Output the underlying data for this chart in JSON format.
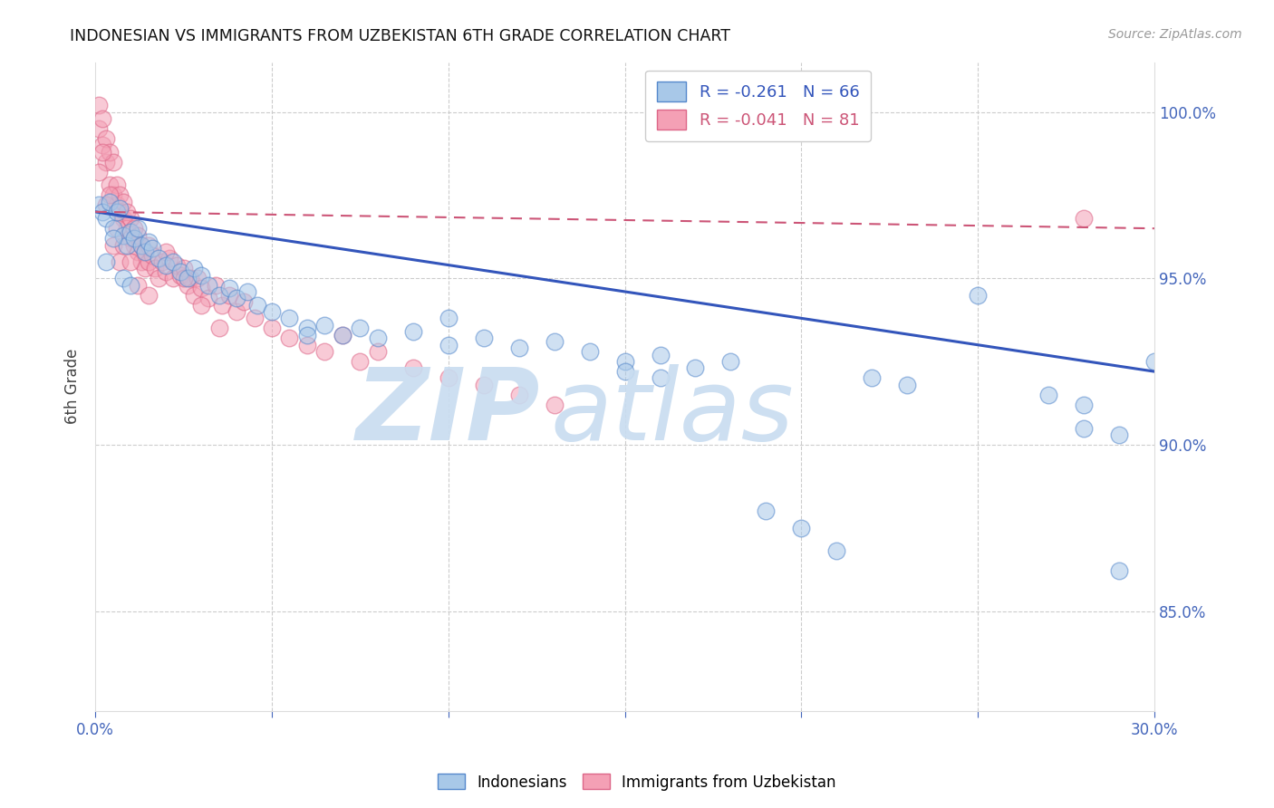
{
  "title": "INDONESIAN VS IMMIGRANTS FROM UZBEKISTAN 6TH GRADE CORRELATION CHART",
  "source": "Source: ZipAtlas.com",
  "ylabel": "6th Grade",
  "xmin": 0.0,
  "xmax": 0.3,
  "ymin": 82.0,
  "ymax": 101.5,
  "legend_blue_r": -0.261,
  "legend_blue_n": 66,
  "legend_pink_r": -0.041,
  "legend_pink_n": 81,
  "blue_color": "#A8C8E8",
  "pink_color": "#F4A0B5",
  "blue_edge_color": "#5588CC",
  "pink_edge_color": "#DD6688",
  "blue_line_color": "#3355BB",
  "pink_line_color": "#CC5577",
  "watermark_zip_color": "#C8DCF0",
  "watermark_atlas_color": "#C8DCF0",
  "tick_color": "#4466BB",
  "grid_color": "#CCCCCC",
  "blue_scatter_x": [
    0.001,
    0.002,
    0.003,
    0.004,
    0.005,
    0.006,
    0.007,
    0.008,
    0.009,
    0.01,
    0.011,
    0.012,
    0.013,
    0.014,
    0.015,
    0.016,
    0.018,
    0.02,
    0.022,
    0.024,
    0.026,
    0.028,
    0.03,
    0.032,
    0.035,
    0.038,
    0.04,
    0.043,
    0.046,
    0.05,
    0.055,
    0.06,
    0.065,
    0.07,
    0.075,
    0.08,
    0.09,
    0.1,
    0.11,
    0.12,
    0.13,
    0.14,
    0.15,
    0.16,
    0.17,
    0.18,
    0.19,
    0.2,
    0.21,
    0.22,
    0.23,
    0.25,
    0.27,
    0.28,
    0.29,
    0.3,
    0.003,
    0.005,
    0.008,
    0.01,
    0.15,
    0.16,
    0.28,
    0.29,
    0.06,
    0.1
  ],
  "blue_scatter_y": [
    97.2,
    97.0,
    96.8,
    97.3,
    96.5,
    97.0,
    97.1,
    96.3,
    96.0,
    96.4,
    96.2,
    96.5,
    96.0,
    95.8,
    96.1,
    95.9,
    95.6,
    95.4,
    95.5,
    95.2,
    95.0,
    95.3,
    95.1,
    94.8,
    94.5,
    94.7,
    94.4,
    94.6,
    94.2,
    94.0,
    93.8,
    93.5,
    93.6,
    93.3,
    93.5,
    93.2,
    93.4,
    93.0,
    93.2,
    92.9,
    93.1,
    92.8,
    92.5,
    92.7,
    92.3,
    92.5,
    88.0,
    87.5,
    86.8,
    92.0,
    91.8,
    94.5,
    91.5,
    91.2,
    86.2,
    92.5,
    95.5,
    96.2,
    95.0,
    94.8,
    92.2,
    92.0,
    90.5,
    90.3,
    93.3,
    93.8
  ],
  "pink_scatter_x": [
    0.001,
    0.001,
    0.002,
    0.002,
    0.003,
    0.003,
    0.004,
    0.004,
    0.005,
    0.005,
    0.006,
    0.006,
    0.007,
    0.007,
    0.008,
    0.008,
    0.009,
    0.009,
    0.01,
    0.01,
    0.011,
    0.011,
    0.012,
    0.012,
    0.013,
    0.013,
    0.014,
    0.014,
    0.015,
    0.015,
    0.016,
    0.017,
    0.018,
    0.019,
    0.02,
    0.021,
    0.022,
    0.023,
    0.024,
    0.025,
    0.026,
    0.027,
    0.028,
    0.029,
    0.03,
    0.032,
    0.034,
    0.036,
    0.038,
    0.04,
    0.042,
    0.045,
    0.05,
    0.055,
    0.06,
    0.065,
    0.07,
    0.075,
    0.08,
    0.09,
    0.1,
    0.11,
    0.12,
    0.13,
    0.001,
    0.002,
    0.003,
    0.004,
    0.005,
    0.006,
    0.007,
    0.008,
    0.01,
    0.012,
    0.015,
    0.02,
    0.025,
    0.03,
    0.035,
    0.28
  ],
  "pink_scatter_y": [
    99.5,
    100.2,
    99.8,
    99.0,
    98.5,
    99.2,
    98.8,
    97.8,
    98.5,
    97.5,
    97.8,
    97.2,
    97.5,
    97.0,
    97.3,
    96.8,
    97.0,
    96.5,
    96.8,
    96.2,
    96.5,
    96.0,
    96.3,
    95.8,
    96.0,
    95.5,
    95.8,
    95.3,
    96.0,
    95.5,
    95.7,
    95.3,
    95.0,
    95.5,
    95.2,
    95.6,
    95.0,
    95.4,
    95.1,
    95.3,
    94.8,
    95.0,
    94.5,
    95.0,
    94.7,
    94.4,
    94.8,
    94.2,
    94.5,
    94.0,
    94.3,
    93.8,
    93.5,
    93.2,
    93.0,
    92.8,
    93.3,
    92.5,
    92.8,
    92.3,
    92.0,
    91.8,
    91.5,
    91.2,
    98.2,
    98.8,
    97.2,
    97.5,
    96.0,
    96.5,
    95.5,
    96.0,
    95.5,
    94.8,
    94.5,
    95.8,
    95.0,
    94.2,
    93.5,
    96.8
  ],
  "blue_trendline_x": [
    0.0,
    0.3
  ],
  "blue_trendline_y": [
    97.0,
    92.2
  ],
  "pink_trendline_x": [
    0.0,
    0.3
  ],
  "pink_trendline_y": [
    97.0,
    96.5
  ],
  "xtick_positions": [
    0.0,
    0.05,
    0.1,
    0.15,
    0.2,
    0.25,
    0.3
  ],
  "ytick_positions": [
    85,
    90,
    95,
    100
  ],
  "ytick_labels": [
    "85.0%",
    "90.0%",
    "95.0%",
    "100.0%"
  ]
}
